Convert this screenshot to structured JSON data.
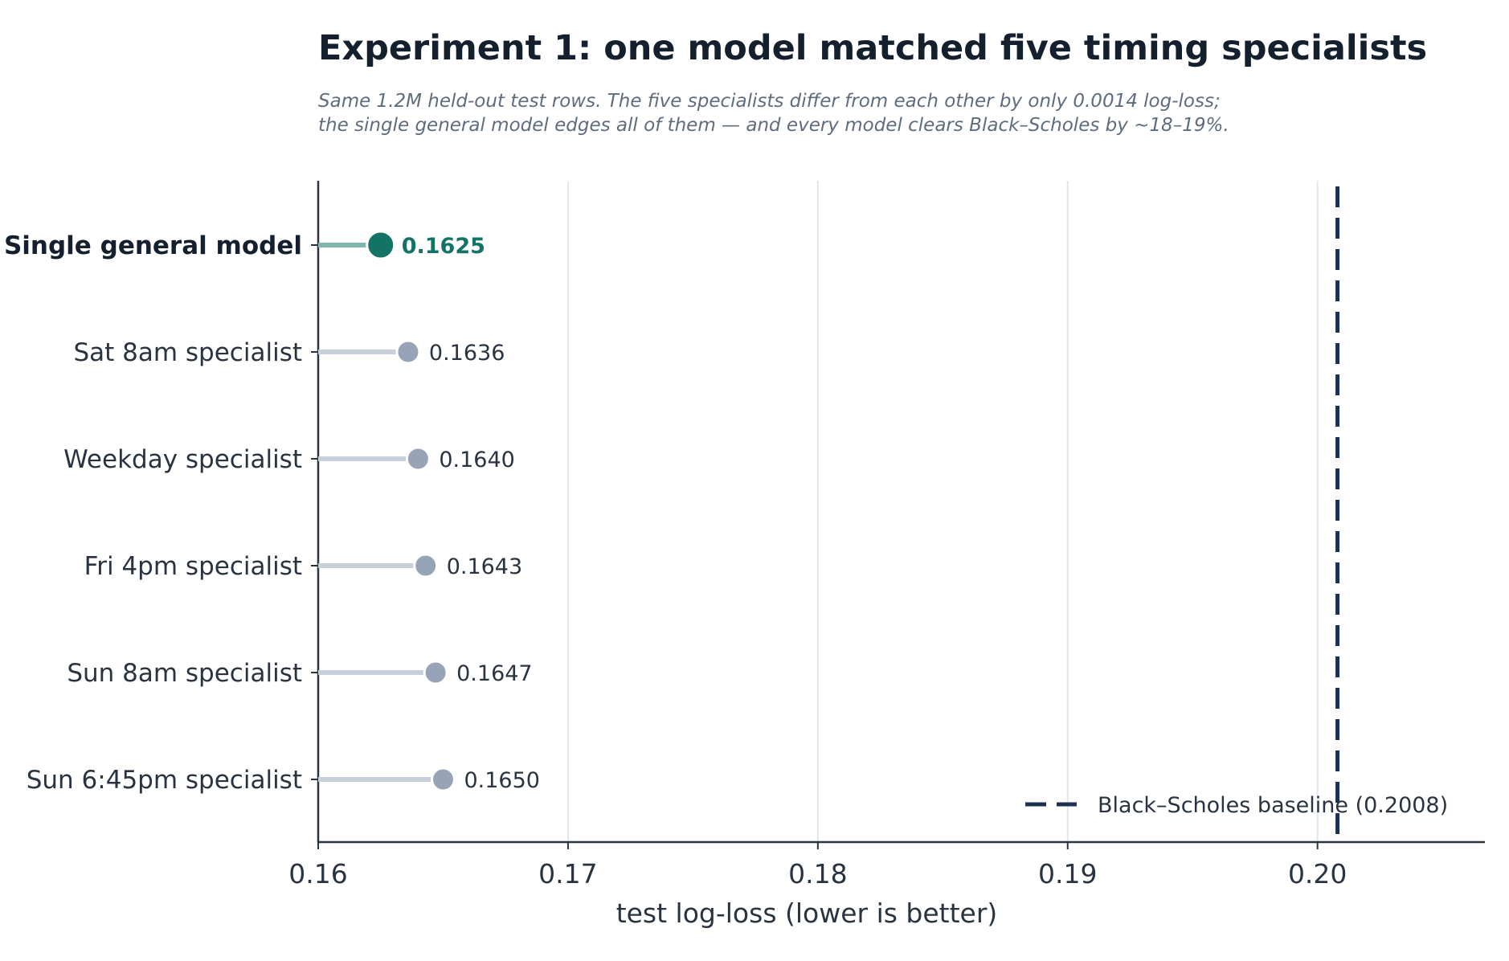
{
  "chart_data": {
    "type": "dot",
    "title": "Experiment 1: one model matched five timing specialists",
    "subtitle": [
      "Same 1.2M held-out test rows. The five specialists differ from each other by only 0.0014 log-loss;",
      "the single general model edges all of them — and every model clears Black–Scholes by ~18–19%."
    ],
    "xlabel": "test log-loss  (lower is better)",
    "ylabel": "",
    "xlim": [
      0.16,
      0.2067
    ],
    "xticks": [
      0.16,
      0.17,
      0.18,
      0.19,
      0.2
    ],
    "xtick_labels": [
      "0.16",
      "0.17",
      "0.18",
      "0.19",
      "0.20"
    ],
    "grid": "vertical",
    "categories": [
      "Single general model",
      "Sat 8am specialist",
      "Weekday specialist",
      "Fri 4pm specialist",
      "Sun 8am specialist",
      "Sun 6:45pm specialist"
    ],
    "values": [
      0.1625,
      0.1636,
      0.164,
      0.1643,
      0.1647,
      0.165
    ],
    "value_labels": [
      "0.1625",
      "0.1636",
      "0.1640",
      "0.1643",
      "0.1647",
      "0.1650"
    ],
    "highlight_index": 0,
    "reference_line": {
      "value": 0.2008,
      "label": "Black–Scholes baseline  (0.2008)",
      "style": "dashed"
    },
    "legend_position": "bottom-right",
    "colors": {
      "highlight": "#137366",
      "highlight_stem": "#7fb5ad",
      "point": "#97a3b7",
      "stem": "#c7cfdb",
      "reference": "#1c3150",
      "grid": "#dfe7ef",
      "axis": "#2a3340"
    }
  }
}
